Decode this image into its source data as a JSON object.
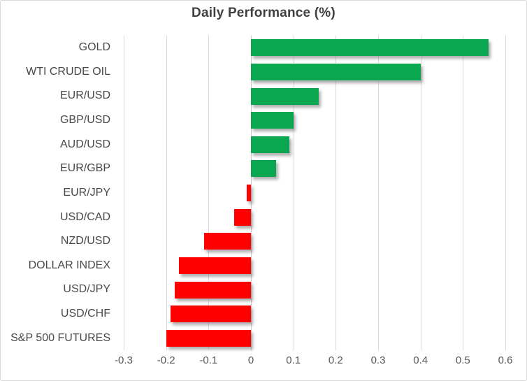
{
  "title": "Daily Performance (%)",
  "colors": {
    "positive_bar": "#0BA750",
    "negative_bar": "#FE0000",
    "gridline": "#D9D9D9",
    "zero_line": "#C9C9C9",
    "title_text": "#404040",
    "category_text": "#484848",
    "tick_text": "#555555",
    "frame_border": "#D9D9D9",
    "background": "#FFFFFF"
  },
  "chart_data": {
    "type": "bar",
    "orientation": "horizontal",
    "title": "Daily Performance (%)",
    "categories": [
      "GOLD",
      "WTI CRUDE OIL",
      "EUR/USD",
      "GBP/USD",
      "AUD/USD",
      "EUR/GBP",
      "EUR/JPY",
      "USD/CAD",
      "NZD/USD",
      "DOLLAR INDEX",
      "USD/JPY",
      "USD/CHF",
      "S&P 500 FUTURES"
    ],
    "values": [
      0.56,
      0.4,
      0.16,
      0.1,
      0.09,
      0.06,
      -0.01,
      -0.04,
      -0.11,
      -0.17,
      -0.18,
      -0.19,
      -0.2
    ],
    "xlim": [
      -0.3,
      0.6
    ],
    "x_ticks": [
      -0.3,
      -0.2,
      -0.1,
      0,
      0.1,
      0.2,
      0.3,
      0.4,
      0.5,
      0.6
    ],
    "x_tick_labels": [
      "-0.3",
      "-0.2",
      "-0.1",
      "0",
      "0.1",
      "0.2",
      "0.3",
      "0.4",
      "0.5",
      "0.6"
    ],
    "grid": true,
    "legend": false,
    "value_labels": false
  }
}
